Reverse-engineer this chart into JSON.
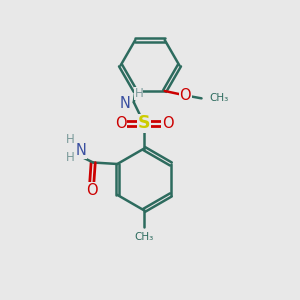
{
  "background_color": "#e8e8e8",
  "bond_color": "#2d6b5e",
  "atom_colors": {
    "N": "#3a4fa0",
    "O": "#cc0000",
    "S": "#cccc00",
    "C": "#2d6b5e",
    "H": "#7a9a9a"
  },
  "figsize": [
    3.0,
    3.0
  ],
  "dpi": 100
}
